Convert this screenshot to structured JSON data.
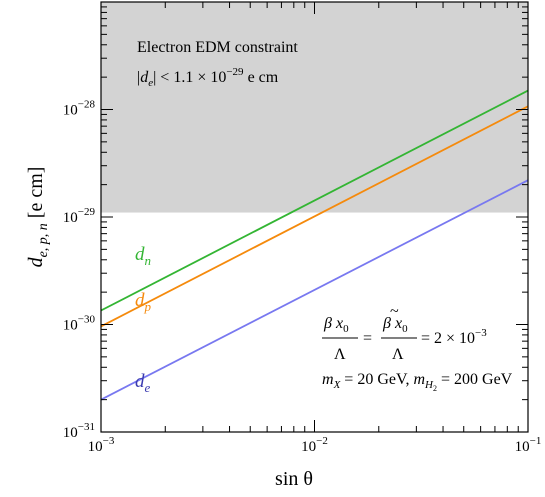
{
  "chart_data": {
    "type": "line",
    "xscale": "log",
    "yscale": "log",
    "xlim": [
      0.001,
      0.1
    ],
    "ylim": [
      1e-31,
      1e-27
    ],
    "xlabel": "sin θ",
    "ylabel": "d",
    "ylabel_subscript": "e, p, n",
    "ylabel_unit": "[e cm]",
    "x_tick_labels": [
      {
        "base": "10",
        "exp": "−3",
        "value": 0.001
      },
      {
        "base": "10",
        "exp": "−2",
        "value": 0.01
      },
      {
        "base": "10",
        "exp": "−1",
        "value": 0.1
      }
    ],
    "y_tick_labels": [
      {
        "base": "10",
        "exp": "−31",
        "value": 1e-31
      },
      {
        "base": "10",
        "exp": "−30",
        "value": 1e-30
      },
      {
        "base": "10",
        "exp": "−29",
        "value": 1e-29
      },
      {
        "base": "10",
        "exp": "−28",
        "value": 1e-28
      }
    ],
    "grid": false,
    "shaded_region": {
      "y_from": 1.1e-29,
      "y_to": 1e-27,
      "color": "#d3d3d3",
      "title": "Electron EDM constraint",
      "bound_prefix": "|",
      "bound_var": "d",
      "bound_sub": "e",
      "bound_mid": "| < 1.1 × 10",
      "bound_exp": "−29",
      "bound_unit": " e cm"
    },
    "series": [
      {
        "name": "d",
        "sub": "n",
        "color": "#33b533",
        "x": [
          0.001,
          0.1
        ],
        "y": [
          1.35e-30,
          1.5e-28
        ]
      },
      {
        "name": "d",
        "sub": "p",
        "color": "#f58a0c",
        "x": [
          0.001,
          0.1
        ],
        "y": [
          9.6e-31,
          1.07e-28
        ]
      },
      {
        "name": "d",
        "sub": "e",
        "color": "#7878f0",
        "x": [
          0.001,
          0.1
        ],
        "y": [
          2e-31,
          2.2e-29
        ]
      }
    ],
    "annotations": {
      "frac1_num": "β x",
      "frac1_num_sub": "0",
      "frac1_den": "Λ",
      "equals1": "=",
      "frac2_tilde": "~",
      "frac2_num": "β x",
      "frac2_num_sub": "0",
      "frac2_den": "Λ",
      "equals_rhs": "= 2 × 10",
      "rhs_exp": "−3",
      "mass_line_mx": "m",
      "mass_line_mx_sub": "X",
      "mass_line_mx_val": " = 20 GeV,  ",
      "mass_line_mh": "m",
      "mass_line_mh_sub": "H",
      "mass_line_mh_subsub": "2",
      "mass_line_mh_val": " = 200 GeV"
    }
  }
}
